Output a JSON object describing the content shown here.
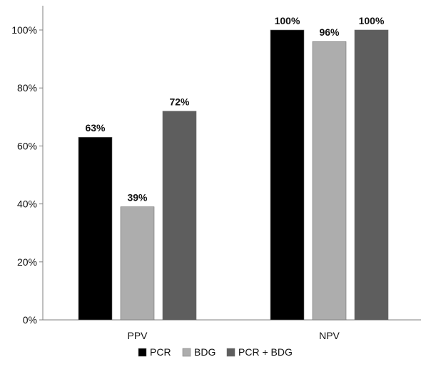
{
  "chart_data": {
    "type": "bar",
    "title": "",
    "xlabel": "",
    "ylabel": "",
    "categories": [
      "PPV",
      "NPV"
    ],
    "series": [
      {
        "name": "PCR",
        "values": [
          63,
          100
        ],
        "color": "#000000",
        "labels": [
          "63%",
          "100%"
        ]
      },
      {
        "name": "BDG",
        "values": [
          39,
          96
        ],
        "color": "#adadad",
        "labels": [
          "39%",
          "96%"
        ]
      },
      {
        "name": "PCR + BDG",
        "values": [
          72,
          100
        ],
        "color": "#5e5e5e",
        "labels": [
          "72%",
          "100%"
        ]
      }
    ],
    "ylim": [
      0,
      100
    ],
    "yticks": [
      0,
      20,
      40,
      60,
      80,
      100
    ],
    "ytick_labels": [
      "0%",
      "20%",
      "40%",
      "60%",
      "80%",
      "100%"
    ],
    "grid": false,
    "legend_position": "bottom",
    "axis_color": "#7f7f7f"
  }
}
